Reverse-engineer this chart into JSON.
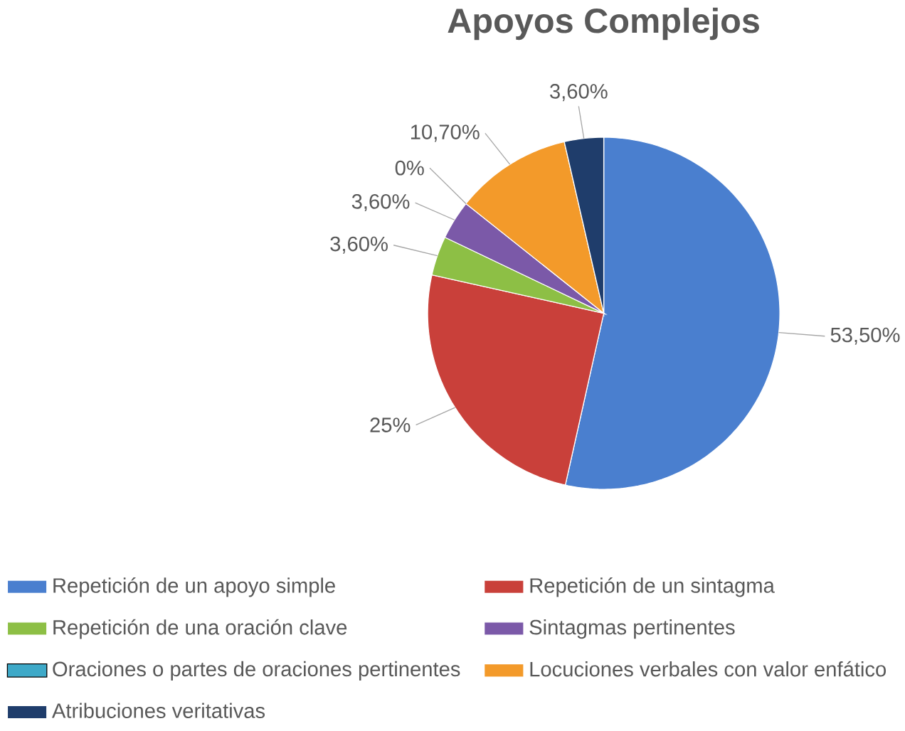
{
  "chart_data": {
    "type": "pie",
    "title": "Apoyos Complejos",
    "categories": [
      "Repetición de un apoyo simple",
      "Repetición de un sintagma",
      "Repetición de una oración clave",
      "Sintagmas pertinentes",
      "Oraciones o partes de oraciones pertinentes",
      "Locuciones verbales con valor enfático",
      "Atribuciones veritativas"
    ],
    "values": [
      53.5,
      25,
      3.6,
      3.6,
      0,
      10.7,
      3.6
    ],
    "colors": [
      "#4a7fcf",
      "#c9403a",
      "#8dbf45",
      "#7b59a8",
      "#3ea9c8",
      "#f39a2a",
      "#1f3d6b"
    ],
    "value_labels": [
      "53,50%",
      "25%",
      "3,60%",
      "3,60%",
      "0%",
      "10,70%",
      "3,60%"
    ],
    "legend": "bottom"
  }
}
